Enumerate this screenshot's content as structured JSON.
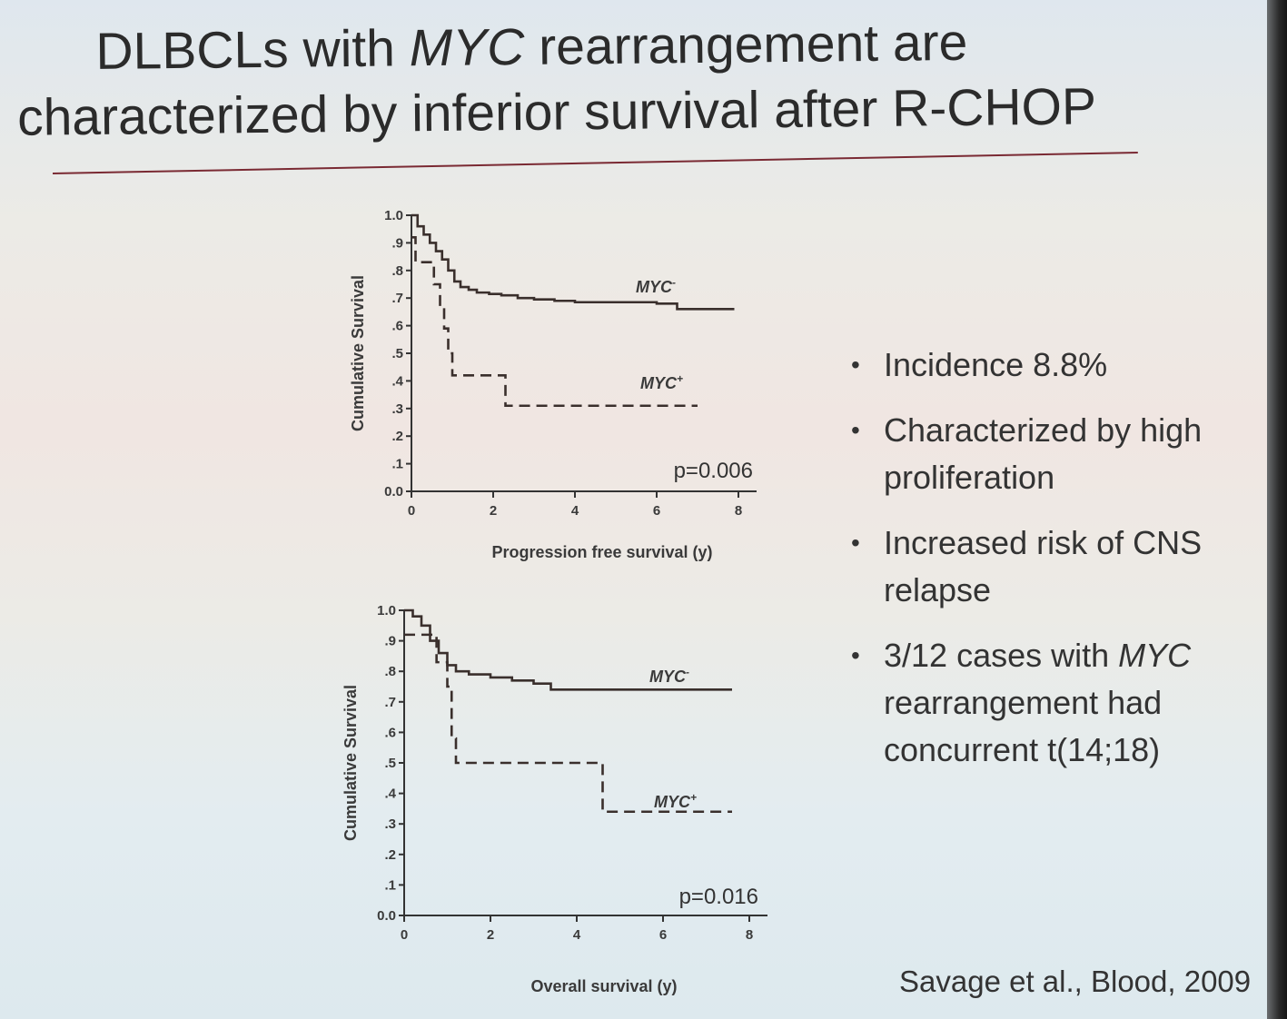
{
  "title": {
    "line1_pre": "DLBCLs with ",
    "line1_em": "MYC",
    "line1_post": " rearrangement are",
    "line2": "characterized by inferior survival after R-CHOP"
  },
  "bullets": [
    {
      "text": "Incidence 8.8%"
    },
    {
      "text": "Characterized by high proliferation"
    },
    {
      "text": "Increased risk of CNS relapse"
    },
    {
      "text_pre": "3/12 cases with ",
      "text_em": "MYC",
      "text_post": " rearrangement had concurrent t(14;18)"
    }
  ],
  "citation": "Savage et al., Blood, 2009",
  "chart_data": [
    {
      "type": "line",
      "step": true,
      "xlabel": "Progression free survival (y)",
      "ylabel": "Cumulative Survival",
      "xlim": [
        0,
        8
      ],
      "ylim": [
        0,
        1.0
      ],
      "xticks": [
        {
          "v": 0,
          "label": "0"
        },
        {
          "v": 2,
          "label": "2"
        },
        {
          "v": 4,
          "label": "4"
        },
        {
          "v": 6,
          "label": "6"
        },
        {
          "v": 8,
          "label": "8"
        }
      ],
      "yticks": [
        {
          "v": 0,
          "label": "0.0"
        },
        {
          "v": 0.1,
          "label": ".1"
        },
        {
          "v": 0.2,
          "label": ".2"
        },
        {
          "v": 0.3,
          "label": ".3"
        },
        {
          "v": 0.4,
          "label": ".4"
        },
        {
          "v": 0.5,
          "label": ".5"
        },
        {
          "v": 0.6,
          "label": ".6"
        },
        {
          "v": 0.7,
          "label": ".7"
        },
        {
          "v": 0.8,
          "label": ".8"
        },
        {
          "v": 0.9,
          "label": ".9"
        },
        {
          "v": 1.0,
          "label": "1.0"
        }
      ],
      "annotation": "p=0.006",
      "series": [
        {
          "name": "MYC-",
          "label_text": "MYC",
          "label_sup": "-",
          "style": "solid",
          "x": [
            0,
            0.15,
            0.3,
            0.45,
            0.6,
            0.75,
            0.9,
            1.05,
            1.2,
            1.4,
            1.6,
            1.9,
            2.2,
            2.6,
            3.0,
            3.5,
            4.0,
            5.0,
            6.0,
            6.5,
            7.9
          ],
          "y": [
            1.0,
            0.96,
            0.93,
            0.9,
            0.87,
            0.84,
            0.8,
            0.76,
            0.74,
            0.73,
            0.72,
            0.715,
            0.71,
            0.7,
            0.695,
            0.69,
            0.685,
            0.685,
            0.68,
            0.66,
            0.66
          ]
        },
        {
          "name": "MYC+",
          "label_text": "MYC",
          "label_sup": "+",
          "style": "dashed",
          "x": [
            0,
            0.1,
            0.55,
            0.7,
            0.8,
            0.9,
            1.0,
            2.3,
            7.0
          ],
          "y": [
            0.92,
            0.83,
            0.75,
            0.67,
            0.59,
            0.5,
            0.42,
            0.31,
            0.31
          ]
        }
      ]
    },
    {
      "type": "line",
      "step": true,
      "xlabel": "Overall survival (y)",
      "ylabel": "Cumulative Survival",
      "xlim": [
        0,
        8
      ],
      "ylim": [
        0,
        1.0
      ],
      "xticks": [
        {
          "v": 0,
          "label": "0"
        },
        {
          "v": 2,
          "label": "2"
        },
        {
          "v": 4,
          "label": "4"
        },
        {
          "v": 6,
          "label": "6"
        },
        {
          "v": 8,
          "label": "8"
        }
      ],
      "yticks": [
        {
          "v": 0,
          "label": "0.0"
        },
        {
          "v": 0.1,
          "label": ".1"
        },
        {
          "v": 0.2,
          "label": ".2"
        },
        {
          "v": 0.3,
          "label": ".3"
        },
        {
          "v": 0.4,
          "label": ".4"
        },
        {
          "v": 0.5,
          "label": ".5"
        },
        {
          "v": 0.6,
          "label": ".6"
        },
        {
          "v": 0.7,
          "label": ".7"
        },
        {
          "v": 0.8,
          "label": ".8"
        },
        {
          "v": 0.9,
          "label": ".9"
        },
        {
          "v": 1.0,
          "label": "1.0"
        }
      ],
      "annotation": "p=0.016",
      "series": [
        {
          "name": "MYC-",
          "label_text": "MYC",
          "label_sup": "-",
          "style": "solid",
          "x": [
            0,
            0.2,
            0.4,
            0.6,
            0.8,
            1.0,
            1.2,
            1.5,
            2.0,
            2.5,
            3.0,
            3.4,
            4.0,
            5.0,
            6.0,
            7.6
          ],
          "y": [
            1.0,
            0.98,
            0.95,
            0.9,
            0.86,
            0.82,
            0.8,
            0.79,
            0.78,
            0.77,
            0.76,
            0.74,
            0.74,
            0.74,
            0.74,
            0.74
          ]
        },
        {
          "name": "MYC+",
          "label_text": "MYC",
          "label_sup": "+",
          "style": "dashed",
          "x": [
            0,
            0.3,
            0.75,
            1.0,
            1.1,
            1.2,
            4.6,
            7.6
          ],
          "y": [
            0.92,
            0.92,
            0.83,
            0.75,
            0.58,
            0.5,
            0.34,
            0.34
          ]
        }
      ]
    }
  ]
}
